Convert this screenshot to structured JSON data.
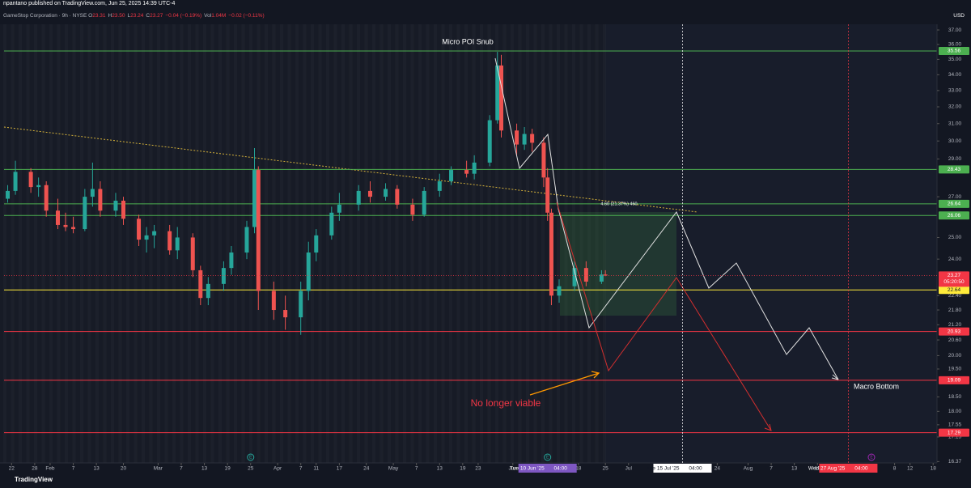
{
  "header": {
    "publish": "npantano published on TradingView.com, Jun 25, 2025 14:39 UTC-4",
    "symbol": "GameStop Corporation · 9h · NYSE",
    "ohlc": [
      {
        "k": "O",
        "v": "23.31"
      },
      {
        "k": "H",
        "v": "23.50"
      },
      {
        "k": "L",
        "v": "23.24"
      },
      {
        "k": "C",
        "v": "23.27"
      }
    ],
    "change": "−0.04 (−0.19%)",
    "volume_label": "Vol",
    "volume": "1.04M",
    "volume_change": "−0.02 (−0.11%)",
    "currency": "USD"
  },
  "footer": "TradingView",
  "chart_data": {
    "type": "candlestick",
    "log_scale": true,
    "up_color": "#26a69a",
    "down_color": "#ef5350",
    "xlim": [
      "2025-01-19",
      "2025-09-19"
    ],
    "ylim": [
      16.33,
      37.4
    ],
    "yticks": [
      {
        "value": 37,
        "label": "37.00"
      },
      {
        "value": 36,
        "label": "36.00"
      },
      {
        "value": 35,
        "label": "35.00"
      },
      {
        "value": 34,
        "label": "34.00"
      },
      {
        "value": 33,
        "label": "33.00"
      },
      {
        "value": 32,
        "label": "32.00"
      },
      {
        "value": 31,
        "label": "31.00"
      },
      {
        "value": 30,
        "label": "30.00"
      },
      {
        "value": 29,
        "label": "29.00"
      },
      {
        "value": 27,
        "label": "27.00"
      },
      {
        "value": 25,
        "label": "25.00"
      },
      {
        "value": 24,
        "label": "24.00"
      },
      {
        "value": 22.4,
        "label": "22.40"
      },
      {
        "value": 21.8,
        "label": "21.80"
      },
      {
        "value": 21.2,
        "label": "21.20"
      },
      {
        "value": 20.6,
        "label": "20.60"
      },
      {
        "value": 20,
        "label": "20.00"
      },
      {
        "value": 19.5,
        "label": "19.50"
      },
      {
        "value": 18.5,
        "label": "18.50"
      },
      {
        "value": 18,
        "label": "18.00"
      },
      {
        "value": 17.55,
        "label": "17.55"
      },
      {
        "value": 17.15,
        "label": "17.15"
      },
      {
        "value": 16.37,
        "label": "16.37"
      }
    ],
    "xticks": [
      {
        "value": "2025-01-22",
        "label": "22"
      },
      {
        "value": "2025-01-28",
        "label": "28"
      },
      {
        "value": "2025-02-01",
        "label": "Feb"
      },
      {
        "value": "2025-02-07",
        "label": "7"
      },
      {
        "value": "2025-02-13",
        "label": "13"
      },
      {
        "value": "2025-02-20",
        "label": "20"
      },
      {
        "value": "2025-03-01",
        "label": "Mar"
      },
      {
        "value": "2025-03-07",
        "label": "7"
      },
      {
        "value": "2025-03-13",
        "label": "13"
      },
      {
        "value": "2025-03-19",
        "label": "19"
      },
      {
        "value": "2025-03-25",
        "label": "25"
      },
      {
        "value": "2025-04-01",
        "label": "Apr"
      },
      {
        "value": "2025-04-07",
        "label": "7"
      },
      {
        "value": "2025-04-11",
        "label": "11"
      },
      {
        "value": "2025-04-17",
        "label": "17"
      },
      {
        "value": "2025-04-24",
        "label": "24"
      },
      {
        "value": "2025-05-01",
        "label": "May"
      },
      {
        "value": "2025-05-07",
        "label": "7"
      },
      {
        "value": "2025-05-13",
        "label": "13"
      },
      {
        "value": "2025-05-19",
        "label": "19"
      },
      {
        "value": "2025-05-23",
        "label": "23"
      },
      {
        "value": "2025-06-01",
        "label": "Jun"
      },
      {
        "value": "2025-06-18",
        "label": "18"
      },
      {
        "value": "2025-06-25",
        "label": "25"
      },
      {
        "value": "2025-07-01",
        "label": "Jul"
      },
      {
        "value": "2025-07-24",
        "label": "24"
      },
      {
        "value": "2025-08-01",
        "label": "Aug"
      },
      {
        "value": "2025-08-07",
        "label": "7"
      },
      {
        "value": "2025-08-13",
        "label": "13"
      },
      {
        "value": "2025-08-19",
        "label": "19"
      },
      {
        "value": "2025-09-08",
        "label": "8"
      },
      {
        "value": "2025-09-12",
        "label": "12"
      },
      {
        "value": "2025-09-18",
        "label": "18"
      }
    ],
    "date_markers": [
      {
        "value": "2025-06-10",
        "label": "Tue 10 Jun '25",
        "time": "04:00",
        "color": "#7e57c2",
        "line": false
      },
      {
        "value": "2025-07-15",
        "label": "Tue 15 Jul '25",
        "time": "04:00",
        "color": "#ffffff",
        "line": true
      },
      {
        "value": "2025-08-27",
        "label": "Wed 27 Aug '25",
        "time": "04:00",
        "color": "#f23645",
        "line": true
      }
    ],
    "events": [
      {
        "x": "2025-03-25",
        "label": "E",
        "color": "#26a69a"
      },
      {
        "x": "2025-06-10",
        "label": "E",
        "color": "#26a69a"
      },
      {
        "x": "2025-09-02",
        "label": "E",
        "color": "#9c27b0"
      }
    ],
    "levels": [
      {
        "value": 35.56,
        "color": "#4caf50"
      },
      {
        "value": 28.43,
        "color": "#4caf50"
      },
      {
        "value": 26.64,
        "color": "#4caf50"
      },
      {
        "value": 26.06,
        "color": "#4caf50"
      },
      {
        "value": 22.64,
        "color": "#ffeb3b"
      },
      {
        "value": 20.93,
        "color": "#f23645"
      },
      {
        "value": 19.09,
        "color": "#f23645"
      },
      {
        "value": 17.29,
        "color": "#f23645"
      }
    ],
    "last_price": 23.27,
    "countdown": "05:20:50",
    "last_color": "#f23645",
    "annotations": {
      "peak": "Micro POI Snub",
      "invalid": "No longer viable",
      "bottom": "Macro Bottom",
      "position": "4.60 (21.37%) 460"
    },
    "x": [
      "2025-01-21",
      "2025-01-23",
      "2025-01-27",
      "2025-01-29",
      "2025-01-31",
      "2025-02-03",
      "2025-02-05",
      "2025-02-07",
      "2025-02-10",
      "2025-02-12",
      "2025-02-14",
      "2025-02-18",
      "2025-02-20",
      "2025-02-24",
      "2025-02-26",
      "2025-02-28",
      "2025-03-04",
      "2025-03-06",
      "2025-03-10",
      "2025-03-12",
      "2025-03-14",
      "2025-03-18",
      "2025-03-20",
      "2025-03-24",
      "2025-03-26",
      "2025-03-27",
      "2025-03-31",
      "2025-04-03",
      "2025-04-07",
      "2025-04-09",
      "2025-04-11",
      "2025-04-15",
      "2025-04-17",
      "2025-04-22",
      "2025-04-25",
      "2025-04-29",
      "2025-05-02",
      "2025-05-06",
      "2025-05-09",
      "2025-05-13",
      "2025-05-16",
      "2025-05-20",
      "2025-05-22",
      "2025-05-26",
      "2025-05-28",
      "2025-05-29",
      "2025-06-02",
      "2025-06-04",
      "2025-06-06",
      "2025-06-09",
      "2025-06-10",
      "2025-06-11",
      "2025-06-13",
      "2025-06-17",
      "2025-06-20",
      "2025-06-24",
      "2025-06-25"
    ],
    "open": [
      26.9,
      27.3,
      28.3,
      27.5,
      27.6,
      26.3,
      25.6,
      25.5,
      25.4,
      27.0,
      27.4,
      26.3,
      26.8,
      25.9,
      24.9,
      25.1,
      25.3,
      24.4,
      25.0,
      23.5,
      22.3,
      22.9,
      23.6,
      24.3,
      25.5,
      28.4,
      22.6,
      21.8,
      21.5,
      22.6,
      24.3,
      25.1,
      26.2,
      26.6,
      27.3,
      27.0,
      27.4,
      26.6,
      26.1,
      27.3,
      27.8,
      28.4,
      28.2,
      28.8,
      31.2,
      34.6,
      30.6,
      29.8,
      30.4,
      29.9,
      28.0,
      26.2,
      22.4,
      22.8,
      23.6,
      23.0,
      23.31
    ],
    "high": [
      27.6,
      28.9,
      28.5,
      28.0,
      27.8,
      26.9,
      26.2,
      26.0,
      27.4,
      28.8,
      27.8,
      27.2,
      27.0,
      26.1,
      25.5,
      25.6,
      25.6,
      25.5,
      25.2,
      23.7,
      23.2,
      23.9,
      24.6,
      25.8,
      29.6,
      28.6,
      23.0,
      22.4,
      23.0,
      24.8,
      25.4,
      26.5,
      27.2,
      27.6,
      27.8,
      27.7,
      27.6,
      26.9,
      27.5,
      28.2,
      28.6,
      28.9,
      29.2,
      31.5,
      35.5,
      35.3,
      31.0,
      30.8,
      30.7,
      30.2,
      28.5,
      26.4,
      23.1,
      23.9,
      23.9,
      23.5,
      23.5
    ],
    "low": [
      26.7,
      27.1,
      27.2,
      27.0,
      26.0,
      25.4,
      25.3,
      25.2,
      25.3,
      26.5,
      26.0,
      26.0,
      25.6,
      24.6,
      24.3,
      24.5,
      24.2,
      24.0,
      23.2,
      22.0,
      22.0,
      22.6,
      23.3,
      24.0,
      25.2,
      21.8,
      21.4,
      21.0,
      20.8,
      22.2,
      23.9,
      24.9,
      25.8,
      26.3,
      26.7,
      26.8,
      26.4,
      25.8,
      26.0,
      27.0,
      27.6,
      28.0,
      27.9,
      28.6,
      31.0,
      30.2,
      29.2,
      29.5,
      29.4,
      27.5,
      25.8,
      22.0,
      22.1,
      22.6,
      22.8,
      22.9,
      23.24
    ],
    "close": [
      27.3,
      28.3,
      27.5,
      27.6,
      26.3,
      25.6,
      25.5,
      25.4,
      27.0,
      27.4,
      26.3,
      26.8,
      25.9,
      24.9,
      25.1,
      25.3,
      24.4,
      25.0,
      23.5,
      22.3,
      22.9,
      23.6,
      24.3,
      25.5,
      28.4,
      22.6,
      21.8,
      21.5,
      22.6,
      24.3,
      25.1,
      26.2,
      26.6,
      27.3,
      27.0,
      27.4,
      26.6,
      26.1,
      27.3,
      27.8,
      28.4,
      28.2,
      28.8,
      31.2,
      34.6,
      30.6,
      29.8,
      30.4,
      29.9,
      28.0,
      26.2,
      22.4,
      22.8,
      23.6,
      23.0,
      23.31,
      23.27
    ]
  }
}
